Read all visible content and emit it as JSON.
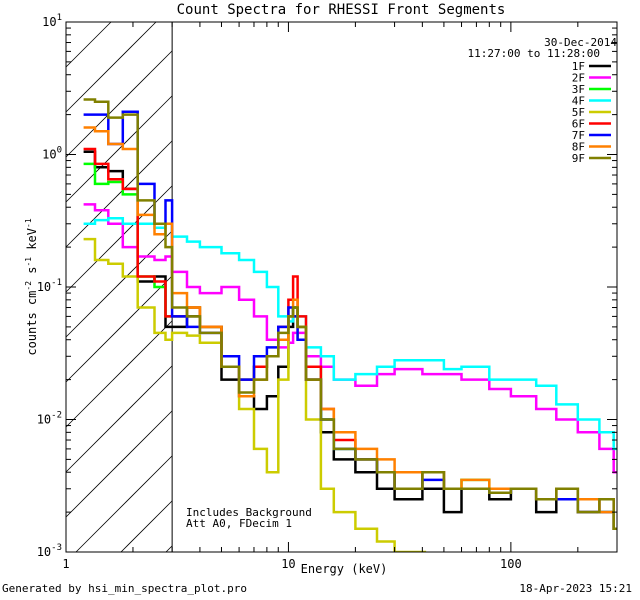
{
  "chart_data": {
    "type": "line",
    "title": "Count Spectra for RHESSI Front Segments",
    "xlabel": "Energy (keV)",
    "ylabel_parts": {
      "pre": "counts cm",
      "exp1": "-2",
      "mid": " s",
      "exp2": "-1",
      "post": " keV",
      "exp3": "-1"
    },
    "x_scale": "log",
    "y_scale": "log",
    "xlim": [
      1,
      300
    ],
    "ylim": [
      0.001,
      10
    ],
    "x_ticks": [
      {
        "value": 1,
        "label": "1"
      },
      {
        "value": 10,
        "label": "10"
      },
      {
        "value": 100,
        "label": "100"
      }
    ],
    "y_ticks": [
      {
        "value": 0.001,
        "base": "10",
        "exp": "-3"
      },
      {
        "value": 0.01,
        "base": "10",
        "exp": "-2"
      },
      {
        "value": 0.1,
        "base": "10",
        "exp": "-1"
      },
      {
        "value": 1,
        "base": "10",
        "exp": "0"
      },
      {
        "value": 10,
        "base": "10",
        "exp": "1"
      }
    ],
    "date": "30-Dec-2014",
    "time_range": "11:27:00 to 11:28:00",
    "annotations": [
      "Includes Background",
      "Att A0, FDecim 1"
    ],
    "hatched_region_kev": [
      1,
      3
    ],
    "series": [
      {
        "name": "1F",
        "color": "#000000",
        "x": [
          1.2,
          1.35,
          1.55,
          1.8,
          2.1,
          2.5,
          2.8,
          3.0,
          3.5,
          4.0,
          5.0,
          6.0,
          7.0,
          8.0,
          9.0,
          10.0,
          10.5,
          11.0,
          12.0,
          14.0,
          16.0,
          20.0,
          25.0,
          30.0,
          40.0,
          50.0,
          60.0,
          80.0,
          100.0,
          130.0,
          160.0,
          200.0,
          250.0,
          290.0
        ],
        "y": [
          1.05,
          0.8,
          0.75,
          0.55,
          0.11,
          0.12,
          0.05,
          0.05,
          0.06,
          0.05,
          0.02,
          0.015,
          0.012,
          0.015,
          0.025,
          0.05,
          0.07,
          0.05,
          0.02,
          0.008,
          0.005,
          0.004,
          0.003,
          0.0025,
          0.003,
          0.002,
          0.003,
          0.0025,
          0.003,
          0.002,
          0.0025,
          0.002,
          0.002,
          0.0015
        ]
      },
      {
        "name": "2F",
        "color": "#ff00ff",
        "x": [
          1.2,
          1.35,
          1.55,
          1.8,
          2.1,
          2.5,
          2.8,
          3.0,
          3.5,
          4.0,
          5.0,
          6.0,
          7.0,
          8.0,
          9.0,
          10.0,
          10.5,
          11.0,
          12.0,
          14.0,
          16.0,
          20.0,
          25.0,
          30.0,
          40.0,
          50.0,
          60.0,
          80.0,
          100.0,
          130.0,
          160.0,
          200.0,
          250.0,
          290.0
        ],
        "y": [
          0.42,
          0.38,
          0.3,
          0.2,
          0.17,
          0.16,
          0.17,
          0.13,
          0.1,
          0.09,
          0.1,
          0.08,
          0.06,
          0.04,
          0.035,
          0.038,
          0.045,
          0.045,
          0.03,
          0.025,
          0.02,
          0.018,
          0.022,
          0.024,
          0.022,
          0.022,
          0.02,
          0.017,
          0.015,
          0.012,
          0.01,
          0.008,
          0.006,
          0.004
        ]
      },
      {
        "name": "3F",
        "color": "#00ff00",
        "x": [
          1.2,
          1.35,
          1.55,
          1.8,
          2.1,
          2.5,
          2.8,
          3.0,
          3.5,
          4.0,
          5.0,
          6.0,
          7.0,
          8.0,
          9.0,
          10.0,
          10.5,
          11.0,
          12.0,
          14.0,
          16.0,
          20.0,
          25.0,
          30.0,
          40.0,
          50.0,
          60.0,
          80.0,
          100.0,
          130.0,
          160.0,
          200.0,
          250.0,
          290.0
        ],
        "y": [
          0.85,
          0.6,
          0.62,
          0.5,
          0.12,
          0.1,
          0.06,
          0.06,
          0.07,
          0.05,
          0.025,
          0.02,
          0.025,
          0.03,
          0.04,
          0.06,
          0.07,
          0.05,
          0.025,
          0.01,
          0.006,
          0.005,
          0.004,
          0.003,
          0.004,
          0.003,
          0.0035,
          0.003,
          0.003,
          0.0025,
          0.003,
          0.002,
          0.002,
          0.0015
        ]
      },
      {
        "name": "4F",
        "color": "#00ffff",
        "x": [
          1.2,
          1.35,
          1.55,
          1.8,
          2.1,
          2.5,
          2.8,
          3.0,
          3.5,
          4.0,
          5.0,
          6.0,
          7.0,
          8.0,
          9.0,
          10.0,
          10.5,
          11.0,
          12.0,
          14.0,
          16.0,
          20.0,
          25.0,
          30.0,
          40.0,
          50.0,
          60.0,
          80.0,
          100.0,
          130.0,
          160.0,
          200.0,
          250.0,
          290.0
        ],
        "y": [
          0.3,
          0.32,
          0.33,
          0.3,
          0.3,
          0.28,
          0.3,
          0.24,
          0.22,
          0.2,
          0.18,
          0.16,
          0.13,
          0.1,
          0.06,
          0.055,
          0.06,
          0.06,
          0.035,
          0.03,
          0.02,
          0.022,
          0.025,
          0.028,
          0.028,
          0.024,
          0.025,
          0.02,
          0.02,
          0.018,
          0.013,
          0.01,
          0.008,
          0.006
        ]
      },
      {
        "name": "5F",
        "color": "#cccc00",
        "x": [
          1.2,
          1.35,
          1.55,
          1.8,
          2.1,
          2.5,
          2.8,
          3.0,
          3.5,
          4.0,
          5.0,
          6.0,
          7.0,
          8.0,
          9.0,
          10.0,
          10.5,
          11.0,
          12.0,
          14.0,
          16.0,
          20.0,
          25.0,
          30.0,
          40.0
        ],
        "y": [
          0.23,
          0.16,
          0.15,
          0.12,
          0.07,
          0.045,
          0.04,
          0.045,
          0.043,
          0.038,
          0.025,
          0.012,
          0.006,
          0.004,
          0.02,
          0.06,
          0.06,
          0.04,
          0.01,
          0.003,
          0.002,
          0.0015,
          0.0012,
          0.001,
          0.001
        ]
      },
      {
        "name": "6F",
        "color": "#ff0000",
        "x": [
          1.2,
          1.35,
          1.55,
          1.8,
          2.1,
          2.5,
          2.8,
          3.0,
          3.5,
          4.0,
          5.0,
          6.0,
          7.0,
          8.0,
          9.0,
          10.0,
          10.5,
          11.0,
          12.0,
          14.0,
          16.0,
          20.0,
          25.0,
          30.0,
          40.0,
          50.0,
          60.0,
          80.0,
          100.0,
          130.0,
          160.0,
          200.0,
          250.0,
          290.0
        ],
        "y": [
          1.1,
          0.85,
          0.65,
          0.55,
          0.12,
          0.11,
          0.06,
          0.06,
          0.07,
          0.05,
          0.025,
          0.02,
          0.025,
          0.03,
          0.05,
          0.08,
          0.12,
          0.06,
          0.025,
          0.012,
          0.007,
          0.005,
          0.004,
          0.003,
          0.004,
          0.003,
          0.003,
          0.003,
          0.003,
          0.0025,
          0.003,
          0.002,
          0.0025,
          0.0015
        ]
      },
      {
        "name": "7F",
        "color": "#0000ff",
        "x": [
          1.2,
          1.35,
          1.55,
          1.8,
          2.1,
          2.5,
          2.8,
          3.0,
          3.5,
          4.0,
          5.0,
          6.0,
          7.0,
          8.0,
          9.0,
          10.0,
          10.5,
          11.0,
          12.0,
          14.0,
          16.0,
          20.0,
          25.0,
          30.0,
          40.0,
          50.0,
          60.0,
          80.0,
          100.0,
          130.0,
          160.0,
          200.0,
          250.0,
          290.0
        ],
        "y": [
          2.0,
          2.0,
          1.2,
          2.1,
          0.6,
          0.3,
          0.45,
          0.06,
          0.05,
          0.045,
          0.03,
          0.02,
          0.03,
          0.035,
          0.05,
          0.07,
          0.06,
          0.04,
          0.02,
          0.01,
          0.006,
          0.005,
          0.004,
          0.003,
          0.0035,
          0.003,
          0.003,
          0.0028,
          0.003,
          0.0025,
          0.0025,
          0.002,
          0.002,
          0.0015
        ]
      },
      {
        "name": "8F",
        "color": "#ff8000",
        "x": [
          1.2,
          1.35,
          1.55,
          1.8,
          2.1,
          2.5,
          2.8,
          3.0,
          3.5,
          4.0,
          5.0,
          6.0,
          7.0,
          8.0,
          9.0,
          10.0,
          10.5,
          11.0,
          12.0,
          14.0,
          16.0,
          20.0,
          25.0,
          30.0,
          40.0,
          50.0,
          60.0,
          80.0,
          100.0,
          130.0,
          160.0,
          200.0,
          250.0,
          290.0
        ],
        "y": [
          1.6,
          1.5,
          1.2,
          1.1,
          0.35,
          0.25,
          0.3,
          0.09,
          0.07,
          0.05,
          0.025,
          0.015,
          0.02,
          0.03,
          0.04,
          0.06,
          0.08,
          0.05,
          0.02,
          0.012,
          0.008,
          0.006,
          0.005,
          0.004,
          0.004,
          0.003,
          0.0035,
          0.003,
          0.003,
          0.0025,
          0.003,
          0.0025,
          0.002,
          0.0015
        ]
      },
      {
        "name": "9F",
        "color": "#808000",
        "x": [
          1.2,
          1.35,
          1.55,
          1.8,
          2.1,
          2.5,
          2.8,
          3.0,
          3.5,
          4.0,
          5.0,
          6.0,
          7.0,
          8.0,
          9.0,
          10.0,
          10.5,
          11.0,
          12.0,
          14.0,
          16.0,
          20.0,
          25.0,
          30.0,
          40.0,
          50.0,
          60.0,
          80.0,
          100.0,
          130.0,
          160.0,
          200.0,
          250.0,
          290.0
        ],
        "y": [
          2.6,
          2.5,
          1.9,
          2.0,
          0.45,
          0.3,
          0.2,
          0.07,
          0.06,
          0.045,
          0.025,
          0.016,
          0.02,
          0.03,
          0.045,
          0.06,
          0.07,
          0.05,
          0.02,
          0.01,
          0.006,
          0.005,
          0.004,
          0.003,
          0.004,
          0.003,
          0.003,
          0.0028,
          0.003,
          0.0025,
          0.003,
          0.002,
          0.0025,
          0.0015
        ]
      }
    ]
  },
  "footer": {
    "generated": "Generated by hsi_min_spectra_plot.pro",
    "timestamp": "18-Apr-2023 15:21"
  }
}
